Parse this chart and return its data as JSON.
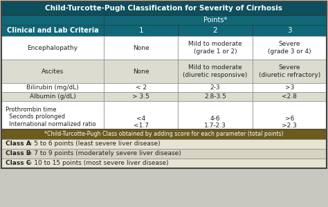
{
  "title": "Child-Turcotte-Pugh Classification for Severity of Cirrhosis",
  "title_bg": "#0d4f5c",
  "title_fg": "#ffffff",
  "header_bg": "#0f6878",
  "header_fg": "#ffffff",
  "col_header": "Clinical and Lab Criteria",
  "points_label": "Points*",
  "point_cols": [
    "1",
    "2",
    "3"
  ],
  "row_bg_white": "#ffffff",
  "row_bg_gray": "#dcddd0",
  "body_fg": "#222222",
  "note_bg": "#6b5c1e",
  "note_fg": "#ffffff",
  "class_bg1": "#e8e4d4",
  "class_bg2": "#d8d4c4",
  "class_fg": "#222222",
  "rows": [
    {
      "criteria": "Encephalopathy",
      "p1": "None",
      "p2": "Mild to moderate\n(grade 1 or 2)",
      "p3": "Severe\n(grade 3 or 4)",
      "bg": "white"
    },
    {
      "criteria": "Ascites",
      "p1": "None",
      "p2": "Mild to moderate\n(diuretic responsive)",
      "p3": "Severe\n(diuretic refractory)",
      "bg": "gray"
    },
    {
      "criteria": "Bilirubin (mg/dL)",
      "p1": "< 2",
      "p2": "2-3",
      "p3": ">3",
      "bg": "white"
    },
    {
      "criteria": "Albumin (g/dL)",
      "p1": "> 3.5",
      "p2": "2.8-3.5",
      "p3": "<2.8",
      "bg": "gray"
    },
    {
      "criteria": "Prothrombin time",
      "criteria_sub": [
        "  Seconds prolonged",
        "  International normalized ratio"
      ],
      "p1": "<4\n<1.7",
      "p2": "4-6\n1.7-2.3",
      "p3": ">6\n>2.3",
      "bg": "white"
    }
  ],
  "note": "*Child-Turcotte-Pugh Class obtained by adding score for each parameter (total points)",
  "classes": [
    {
      "label": "Class A",
      "rest": " = 5 to 6 points (least severe liver disease)"
    },
    {
      "label": "Class B",
      "rest": " = 7 to 9 points (moderately severe liver disease)"
    },
    {
      "label": "Class C",
      "rest": " = 10 to 15 points (most severe liver disease)"
    }
  ]
}
